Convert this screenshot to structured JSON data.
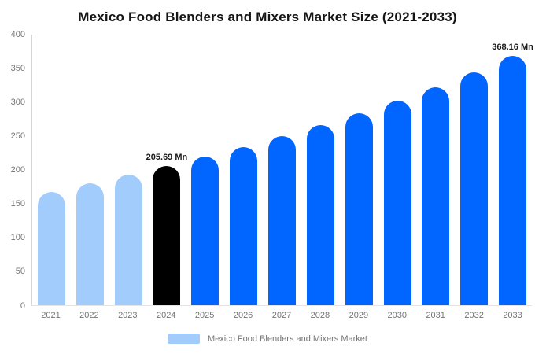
{
  "title": "Mexico Food Blenders and Mixers Market Size (2021-2033)",
  "colors": {
    "historical_bar": "#a2ccfb",
    "highlight_bar": "#000000",
    "forecast_bar": "#0066ff",
    "axis_text": "#757575",
    "title_text": "#151515",
    "data_label_text": "#1a1a1a"
  },
  "chart_data": {
    "type": "bar",
    "title": "Mexico Food Blenders and Mixers Market Size (2021-2033)",
    "xlabel": "",
    "ylabel": "",
    "unit": "Mn",
    "ylim": [
      0,
      400
    ],
    "yticks": [
      0,
      50,
      100,
      150,
      200,
      250,
      300,
      350,
      400
    ],
    "grid": false,
    "legend_position": "bottom",
    "categories": [
      "2021",
      "2022",
      "2023",
      "2024",
      "2025",
      "2026",
      "2027",
      "2028",
      "2029",
      "2030",
      "2031",
      "2032",
      "2033"
    ],
    "values": [
      167.2,
      180.3,
      192.8,
      205.69,
      219.4,
      234.1,
      249.7,
      266.4,
      283.4,
      302.3,
      322.5,
      344.0,
      368.16
    ],
    "point_labels": [
      "",
      "",
      "",
      "205.69 Mn",
      "",
      "",
      "",
      "",
      "",
      "",
      "",
      "",
      "368.16 Mn"
    ],
    "bar_colors": [
      "#a2ccfb",
      "#a2ccfb",
      "#a2ccfb",
      "#000000",
      "#0066ff",
      "#0066ff",
      "#0066ff",
      "#0066ff",
      "#0066ff",
      "#0066ff",
      "#0066ff",
      "#0066ff",
      "#0066ff"
    ]
  },
  "legend": {
    "label": "Mexico Food Blenders and Mixers Market",
    "swatch_color": "#a2ccfb"
  }
}
